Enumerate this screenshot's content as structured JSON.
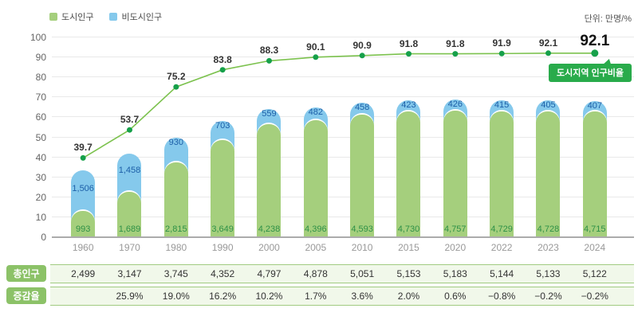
{
  "header": {
    "unit_label": "단위: 만명/%"
  },
  "legend": {
    "items": [
      {
        "label": "도시인구",
        "color": "#a5cf7d"
      },
      {
        "label": "비도시인구",
        "color": "#85c9ec"
      }
    ]
  },
  "badge": {
    "label": "도시지역 인구비율",
    "color": "#29ab4b"
  },
  "chart_data": {
    "type": "combo-stacked-bar-line",
    "title": "",
    "unit": "만명/%",
    "legend_position": "top-left",
    "grid": true,
    "categories": [
      "1960",
      "1970",
      "1980",
      "1990",
      "2000",
      "2005",
      "2010",
      "2015",
      "2020",
      "2022",
      "2023",
      "2024"
    ],
    "y_ticks": [
      0,
      10,
      20,
      30,
      40,
      50,
      60,
      70,
      80,
      90,
      100
    ],
    "ylim": [
      0,
      100
    ],
    "bar_axis_max": 7500,
    "series": [
      {
        "name": "도시인구",
        "type": "bar",
        "color": "#a5cf7d",
        "label_color": "#2e9147",
        "values": [
          993,
          1689,
          2815,
          3649,
          4238,
          4396,
          4593,
          4730,
          4757,
          4729,
          4728,
          4715
        ]
      },
      {
        "name": "비도시인구",
        "type": "bar",
        "color": "#85c9ec",
        "label_color": "#1c5fa8",
        "values": [
          1506,
          1458,
          930,
          703,
          559,
          482,
          458,
          423,
          426,
          415,
          405,
          407
        ]
      },
      {
        "name": "도시지역 인구비율",
        "type": "line",
        "line_color": "#7cc24e",
        "point_color": "#16a04a",
        "values": [
          39.7,
          53.7,
          75.2,
          83.8,
          88.3,
          90.1,
          90.9,
          91.8,
          91.8,
          91.9,
          92.1,
          92.1
        ]
      }
    ]
  },
  "table": {
    "rows": [
      {
        "label": "총인구",
        "values": [
          "2,499",
          "3,147",
          "3,745",
          "4,352",
          "4,797",
          "4,878",
          "5,051",
          "5,153",
          "5,183",
          "5,144",
          "5,133",
          "5,122"
        ]
      },
      {
        "label": "증감율",
        "values": [
          "",
          "25.9%",
          "19.0%",
          "16.2%",
          "10.2%",
          "1.7%",
          "3.6%",
          "2.0%",
          "0.6%",
          "−0.8%",
          "−0.2%",
          "−0.2%"
        ]
      }
    ]
  }
}
